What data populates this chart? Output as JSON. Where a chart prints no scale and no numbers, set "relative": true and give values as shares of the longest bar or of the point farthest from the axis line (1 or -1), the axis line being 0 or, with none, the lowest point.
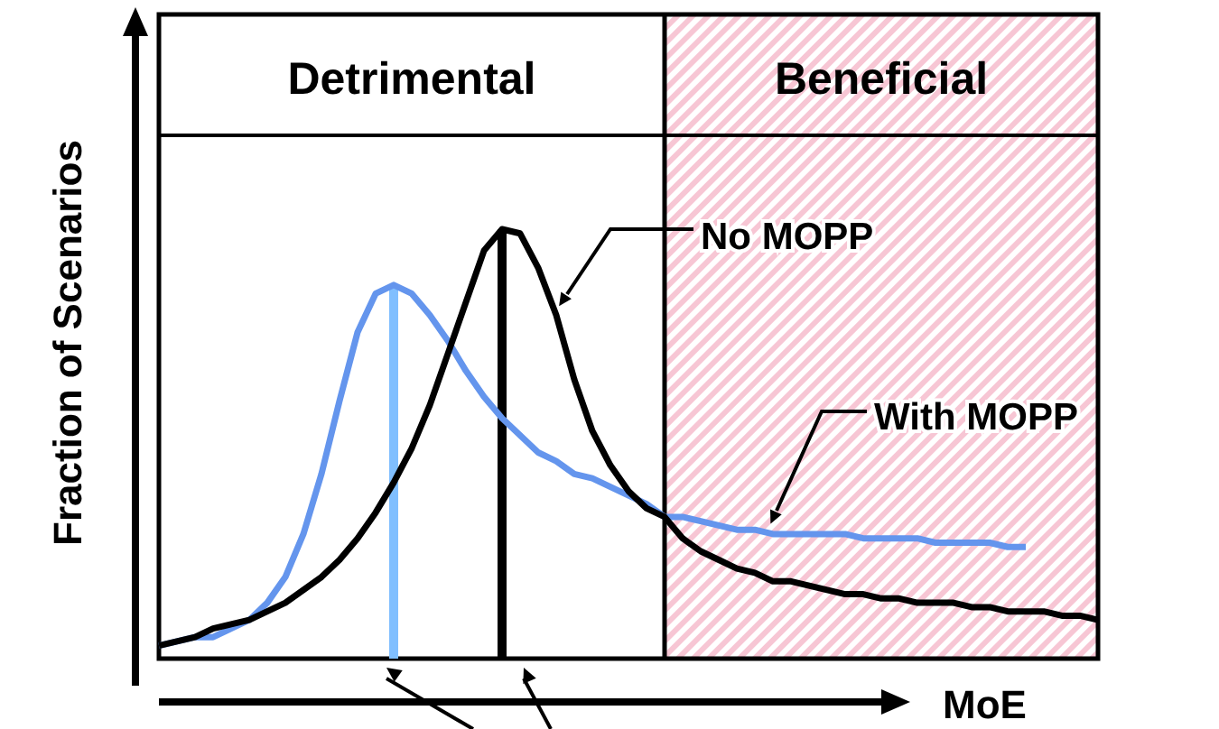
{
  "chart_data": {
    "type": "line",
    "relative": true,
    "xlabel": "MoE",
    "ylabel": "Fraction of Scenarios",
    "categories": [
      null,
      null,
      null,
      null,
      null,
      null,
      null,
      null,
      null,
      null,
      null,
      null,
      null,
      null,
      null,
      null,
      null,
      null,
      null,
      null,
      null,
      null,
      null,
      null,
      null,
      null,
      null,
      null,
      null,
      null,
      null,
      null,
      null,
      null,
      null,
      null,
      null,
      null,
      null,
      null,
      null,
      null,
      null,
      null,
      null,
      null,
      null,
      null,
      null,
      null,
      null,
      null,
      null
    ],
    "series": [
      {
        "color": "#6495ed",
        "values": [
          0.03,
          0.04,
          0.05,
          0.05,
          0.07,
          0.09,
          0.13,
          0.19,
          0.29,
          0.43,
          0.6,
          0.76,
          0.85,
          0.87,
          0.85,
          0.8,
          0.74,
          0.67,
          0.61,
          0.56,
          0.52,
          0.48,
          0.46,
          0.43,
          0.42,
          0.4,
          0.38,
          0.36,
          0.33,
          0.33,
          0.32,
          0.31,
          0.3,
          0.3,
          0.29,
          0.29,
          0.29,
          0.29,
          0.29,
          0.28,
          0.28,
          0.28,
          0.28,
          0.27,
          0.27,
          0.27,
          0.27,
          0.26,
          0.26,
          null,
          null,
          null,
          null
        ]
      },
      {
        "color": "#000000",
        "values": [
          0.03,
          0.04,
          0.05,
          0.07,
          0.08,
          0.09,
          0.11,
          0.13,
          0.16,
          0.19,
          0.23,
          0.28,
          0.34,
          0.41,
          0.49,
          0.59,
          0.71,
          0.83,
          0.95,
          1,
          0.99,
          0.91,
          0.8,
          0.65,
          0.53,
          0.45,
          0.39,
          0.35,
          0.33,
          0.28,
          0.25,
          0.23,
          0.21,
          0.2,
          0.18,
          0.18,
          0.17,
          0.16,
          0.15,
          0.15,
          0.14,
          0.14,
          0.13,
          0.13,
          0.13,
          0.12,
          0.12,
          0.11,
          0.11,
          0.11,
          0.1,
          0.1,
          0.09
        ]
      }
    ],
    "annotations": [
      "No MOPP",
      "With MOPP",
      "Detrimental",
      "Beneficial"
    ]
  }
}
